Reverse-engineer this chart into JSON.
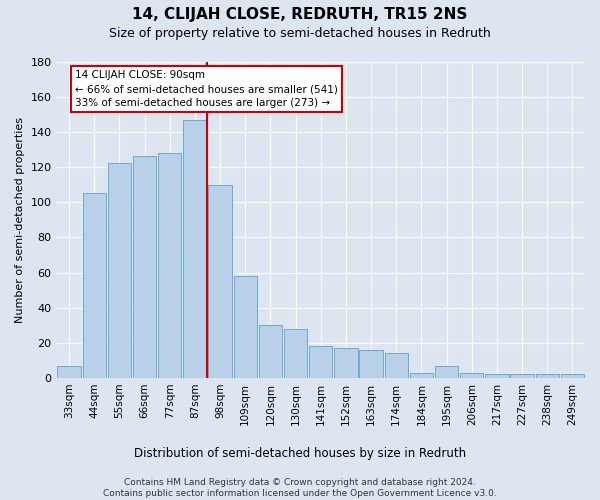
{
  "title": "14, CLIJAH CLOSE, REDRUTH, TR15 2NS",
  "subtitle": "Size of property relative to semi-detached houses in Redruth",
  "xlabel": "Distribution of semi-detached houses by size in Redruth",
  "ylabel": "Number of semi-detached properties",
  "footer_line1": "Contains HM Land Registry data © Crown copyright and database right 2024.",
  "footer_line2": "Contains public sector information licensed under the Open Government Licence v3.0.",
  "categories": [
    "33sqm",
    "44sqm",
    "55sqm",
    "66sqm",
    "77sqm",
    "87sqm",
    "98sqm",
    "109sqm",
    "120sqm",
    "130sqm",
    "141sqm",
    "152sqm",
    "163sqm",
    "174sqm",
    "184sqm",
    "195sqm",
    "206sqm",
    "217sqm",
    "227sqm",
    "238sqm",
    "249sqm"
  ],
  "values": [
    7,
    105,
    122,
    126,
    128,
    147,
    110,
    58,
    30,
    28,
    18,
    17,
    16,
    14,
    3,
    7,
    3,
    2,
    2,
    2,
    2
  ],
  "bar_color": "#b8d0e8",
  "bar_edge_color": "#6aaad4",
  "annotation_title": "14 CLIJAH CLOSE: 90sqm",
  "annotation_line1": "← 66% of semi-detached houses are smaller (541)",
  "annotation_line2": "33% of semi-detached houses are larger (273) →",
  "annotation_box_facecolor": "white",
  "annotation_box_edgecolor": "#cc0000",
  "vline_color": "#cc0000",
  "vline_index": 5.46,
  "ylim": [
    0,
    180
  ],
  "yticks": [
    0,
    20,
    40,
    60,
    80,
    100,
    120,
    140,
    160,
    180
  ],
  "background_color": "#dde5f0",
  "title_fontsize": 11,
  "subtitle_fontsize": 9,
  "ylabel_fontsize": 8,
  "xlabel_fontsize": 8.5,
  "tick_fontsize": 8,
  "footer_fontsize": 6.5
}
